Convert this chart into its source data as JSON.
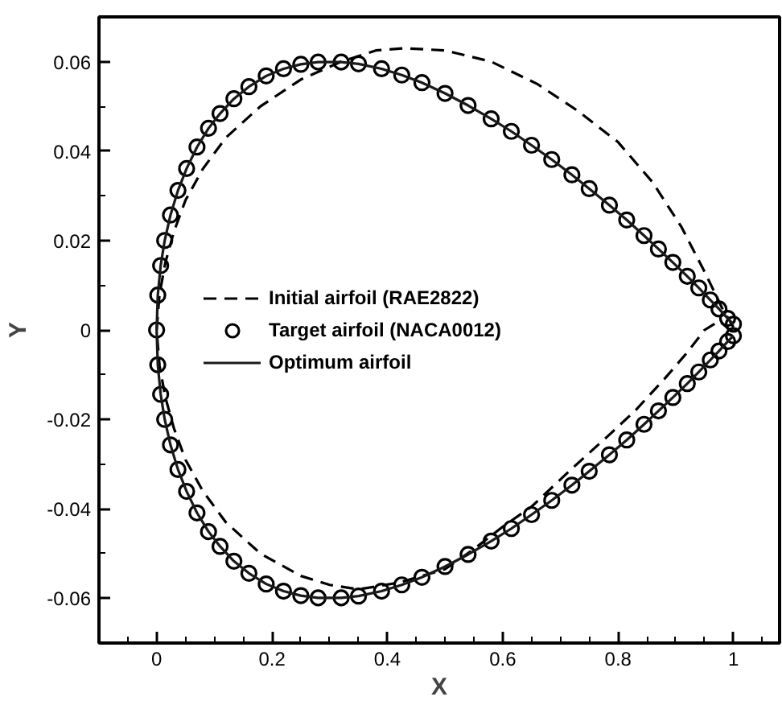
{
  "chart_data": {
    "type": "line",
    "xlabel": "X",
    "ylabel": "Y",
    "xlim": [
      -0.1,
      1.08
    ],
    "ylim": [
      -0.07,
      0.07
    ],
    "xticks": [
      0,
      0.2,
      0.4,
      0.6,
      0.8,
      1
    ],
    "yticks": [
      -0.06,
      -0.04,
      -0.02,
      0,
      0.02,
      0.04,
      0.06
    ],
    "grid": false,
    "legend": "left",
    "series": [
      {
        "name": "Initial airfoil (RAE2822)",
        "type": "line",
        "line_style": "dashed",
        "color": "#000000",
        "x": [
          1,
          0.98,
          0.95,
          0.91,
          0.86,
          0.8,
          0.73,
          0.66,
          0.58,
          0.5,
          0.43,
          0.38,
          0.32,
          0.25,
          0.18,
          0.12,
          0.08,
          0.05,
          0.03,
          0.015,
          0.005,
          0,
          0.005,
          0.015,
          0.03,
          0.05,
          0.08,
          0.12,
          0.18,
          0.25,
          0.3,
          0.35,
          0.42,
          0.5,
          0.55,
          0.6,
          0.65,
          0.72,
          0.78,
          0.83,
          0.88,
          0.92,
          0.95,
          0.975,
          1
        ],
        "values": [
          0.0006,
          0.005,
          0.013,
          0.023,
          0.033,
          0.042,
          0.049,
          0.055,
          0.06,
          0.0625,
          0.063,
          0.0625,
          0.06,
          0.056,
          0.05,
          0.043,
          0.036,
          0.029,
          0.022,
          0.015,
          0.008,
          0,
          -0.008,
          -0.015,
          -0.022,
          -0.029,
          -0.036,
          -0.043,
          -0.05,
          -0.055,
          -0.057,
          -0.058,
          -0.0565,
          -0.0535,
          -0.049,
          -0.044,
          -0.0395,
          -0.031,
          -0.024,
          -0.018,
          -0.011,
          -0.005,
          0,
          0.002,
          -0.0006
        ]
      },
      {
        "name": "Target airfoil (NACA0012)",
        "type": "scatter",
        "marker": "circle",
        "color": "#000000",
        "x": [
          1,
          0.99,
          0.975,
          0.96,
          0.94,
          0.92,
          0.895,
          0.87,
          0.845,
          0.815,
          0.785,
          0.75,
          0.72,
          0.685,
          0.65,
          0.615,
          0.58,
          0.54,
          0.5,
          0.46,
          0.425,
          0.39,
          0.35,
          0.32,
          0.28,
          0.25,
          0.22,
          0.19,
          0.16,
          0.134,
          0.11,
          0.09,
          0.07,
          0.052,
          0.037,
          0.024,
          0.014,
          0.007,
          0.002,
          0,
          0.002,
          0.007,
          0.014,
          0.024,
          0.037,
          0.052,
          0.07,
          0.09,
          0.11,
          0.134,
          0.16,
          0.19,
          0.22,
          0.25,
          0.28,
          0.32,
          0.35,
          0.39,
          0.425,
          0.46,
          0.5,
          0.54,
          0.58,
          0.615,
          0.65,
          0.685,
          0.72,
          0.75,
          0.785,
          0.815,
          0.845,
          0.87,
          0.895,
          0.92,
          0.94,
          0.96,
          0.975,
          0.99,
          1
        ],
        "values": [
          0.0013,
          0.0026,
          0.0047,
          0.0067,
          0.0094,
          0.012,
          0.0151,
          0.0181,
          0.0211,
          0.0246,
          0.0279,
          0.0316,
          0.0347,
          0.0381,
          0.0413,
          0.0444,
          0.0472,
          0.0502,
          0.0529,
          0.0553,
          0.057,
          0.0584,
          0.0595,
          0.0599,
          0.0599,
          0.0594,
          0.0584,
          0.0568,
          0.0544,
          0.0517,
          0.0484,
          0.0451,
          0.0409,
          0.0361,
          0.0312,
          0.0257,
          0.02,
          0.0144,
          0.0078,
          0,
          -0.0078,
          -0.0144,
          -0.02,
          -0.0257,
          -0.0312,
          -0.0361,
          -0.0409,
          -0.0451,
          -0.0484,
          -0.0517,
          -0.0544,
          -0.0568,
          -0.0584,
          -0.0594,
          -0.0599,
          -0.0599,
          -0.0595,
          -0.0584,
          -0.057,
          -0.0553,
          -0.0529,
          -0.0502,
          -0.0472,
          -0.0444,
          -0.0413,
          -0.0381,
          -0.0347,
          -0.0316,
          -0.0279,
          -0.0246,
          -0.0211,
          -0.0181,
          -0.0151,
          -0.012,
          -0.0094,
          -0.0067,
          -0.0047,
          -0.0026,
          -0.0013
        ]
      },
      {
        "name": "Optimum airfoil",
        "line_style": "solid",
        "color": "#1a1a1a",
        "x": [
          1,
          0.99,
          0.975,
          0.96,
          0.94,
          0.92,
          0.895,
          0.87,
          0.845,
          0.815,
          0.785,
          0.75,
          0.72,
          0.685,
          0.65,
          0.615,
          0.58,
          0.54,
          0.5,
          0.46,
          0.425,
          0.39,
          0.35,
          0.32,
          0.28,
          0.25,
          0.22,
          0.19,
          0.16,
          0.134,
          0.11,
          0.09,
          0.07,
          0.052,
          0.037,
          0.024,
          0.014,
          0.007,
          0.002,
          0,
          0.002,
          0.007,
          0.014,
          0.024,
          0.037,
          0.052,
          0.07,
          0.09,
          0.11,
          0.134,
          0.16,
          0.19,
          0.22,
          0.25,
          0.28,
          0.32,
          0.35,
          0.39,
          0.425,
          0.46,
          0.5,
          0.54,
          0.58,
          0.615,
          0.65,
          0.685,
          0.72,
          0.75,
          0.785,
          0.815,
          0.845,
          0.87,
          0.895,
          0.92,
          0.94,
          0.96,
          0.975,
          0.99,
          1
        ],
        "values": [
          0.0013,
          0.0026,
          0.0047,
          0.0067,
          0.0094,
          0.012,
          0.0151,
          0.0181,
          0.0211,
          0.0246,
          0.0279,
          0.0316,
          0.0347,
          0.0381,
          0.0413,
          0.0444,
          0.0472,
          0.0502,
          0.0529,
          0.0553,
          0.057,
          0.0584,
          0.0595,
          0.0599,
          0.0599,
          0.0594,
          0.0584,
          0.0568,
          0.0544,
          0.0517,
          0.0484,
          0.0451,
          0.0409,
          0.0361,
          0.0312,
          0.0257,
          0.02,
          0.0144,
          0.0078,
          0,
          -0.0078,
          -0.0144,
          -0.02,
          -0.0257,
          -0.0312,
          -0.0361,
          -0.0409,
          -0.0451,
          -0.0484,
          -0.0517,
          -0.0544,
          -0.0568,
          -0.0584,
          -0.0594,
          -0.0599,
          -0.0599,
          -0.0595,
          -0.0584,
          -0.057,
          -0.0553,
          -0.0529,
          -0.0502,
          -0.0472,
          -0.0444,
          -0.0413,
          -0.0381,
          -0.0347,
          -0.0316,
          -0.0279,
          -0.0246,
          -0.0211,
          -0.0181,
          -0.0151,
          -0.012,
          -0.0094,
          -0.0067,
          -0.0047,
          -0.0026,
          -0.0013
        ]
      }
    ]
  }
}
